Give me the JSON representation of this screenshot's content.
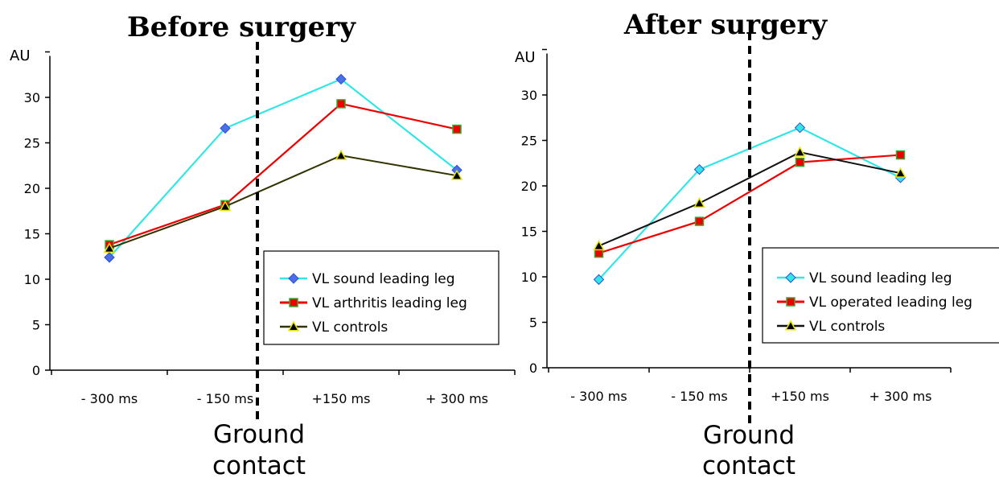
{
  "chart_data": [
    {
      "type": "line",
      "title": "Before surgery",
      "ylabel": "AU",
      "ylim": [
        0,
        35
      ],
      "yticks": [
        0,
        5,
        10,
        15,
        20,
        25,
        30
      ],
      "categories": [
        "- 300 ms",
        "- 150 ms",
        "+150 ms",
        "+ 300 ms"
      ],
      "annotation": "Ground contact",
      "annotation_lines": [
        "Ground",
        "contact"
      ],
      "legend_position": "right",
      "series": [
        {
          "name": "VL sound leading leg",
          "values": [
            12.4,
            26.6,
            32.0,
            22.0
          ],
          "color": "#33e6e6",
          "marker": "diamond",
          "marker_fill": "#4a6fe6"
        },
        {
          "name": "VL arthritis leading leg",
          "values": [
            13.8,
            18.2,
            29.3,
            26.5
          ],
          "color": "#ee0000",
          "marker": "square",
          "marker_fill": "#ee0000"
        },
        {
          "name": "VL controls",
          "values": [
            13.4,
            18.0,
            23.6,
            21.4
          ],
          "color": "#333300",
          "marker": "triangle",
          "marker_fill": "#000000"
        }
      ]
    },
    {
      "type": "line",
      "title": "After surgery",
      "ylabel": "AU",
      "ylim": [
        0,
        35
      ],
      "yticks": [
        0,
        5,
        10,
        15,
        20,
        25,
        30
      ],
      "categories": [
        "- 300 ms",
        "- 150 ms",
        "+150 ms",
        "+ 300 ms"
      ],
      "annotation": "Ground contact",
      "annotation_lines": [
        "Ground",
        "contact"
      ],
      "legend_position": "right",
      "series": [
        {
          "name": "VL sound leading leg",
          "values": [
            9.7,
            21.8,
            26.4,
            20.9
          ],
          "color": "#33e6e6",
          "marker": "diamond",
          "marker_fill": "#33e6e6"
        },
        {
          "name": "VL operated leading leg",
          "values": [
            12.6,
            16.1,
            22.6,
            23.4
          ],
          "color": "#ee0000",
          "marker": "square",
          "marker_fill": "#ee0000"
        },
        {
          "name": "VL controls",
          "values": [
            13.4,
            18.1,
            23.7,
            21.4
          ],
          "color": "#111111",
          "marker": "triangle",
          "marker_fill": "#000000"
        }
      ]
    }
  ]
}
